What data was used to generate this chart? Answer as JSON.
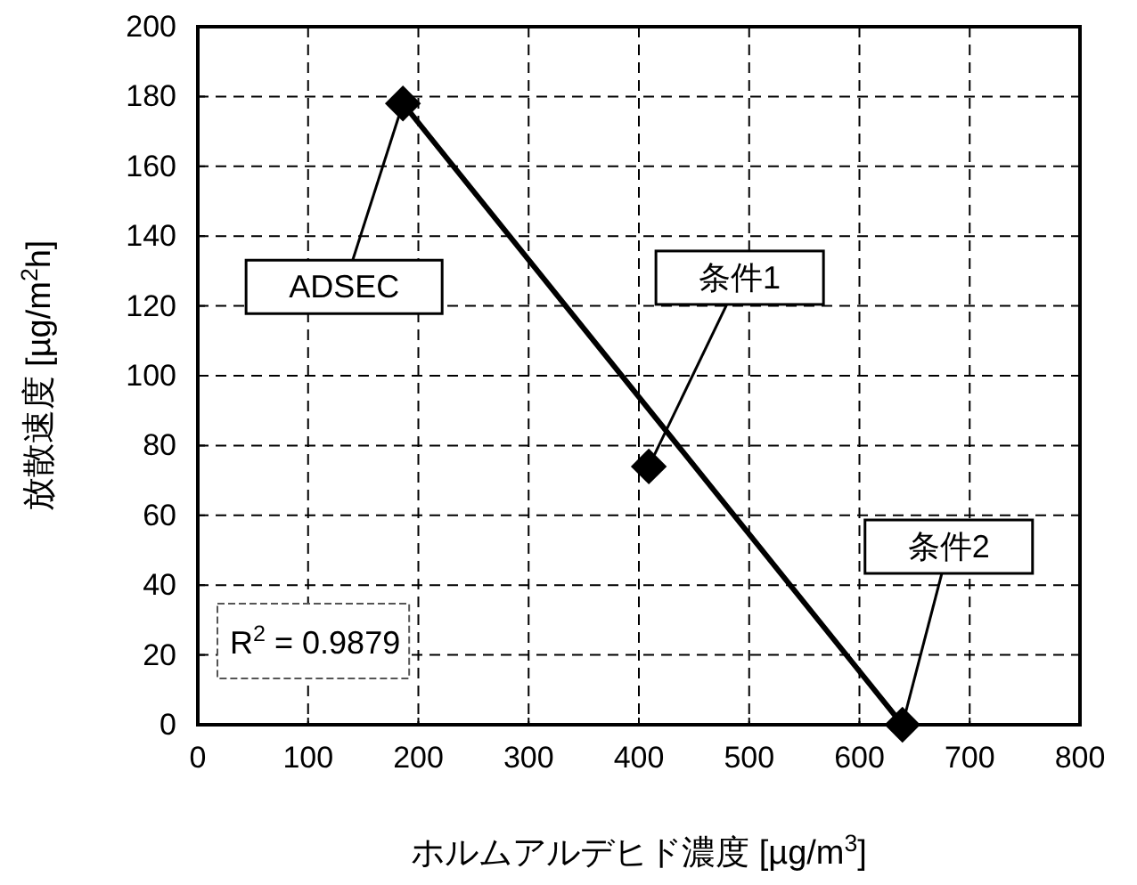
{
  "chart_data": {
    "type": "scatter",
    "xlabel": "ホルムアルデヒド濃度 [µg/m$^{3}$]",
    "ylabel": "放散速度 [µg/m$^{2}$h]",
    "xlim": [
      0,
      800
    ],
    "xticks": [
      0,
      100,
      200,
      300,
      400,
      500,
      600,
      700,
      800
    ],
    "ylim": [
      0,
      200
    ],
    "yticks": [
      0,
      20,
      40,
      60,
      80,
      100,
      120,
      140,
      160,
      180,
      200
    ],
    "grid": true,
    "marker": "diamond",
    "series": [
      {
        "color": "#000000",
        "x": [
          186,
          409,
          639
        ],
        "values": [
          178,
          74,
          0
        ]
      },
      {
        "type": "line",
        "color": "#000000",
        "x": [
          186,
          639
        ],
        "values": [
          178,
          0
        ],
        "line_style": "solid",
        "marker": "none"
      }
    ],
    "annotations": [
      {
        "text": "ADSEC",
        "x": 186,
        "y": 178
      },
      {
        "text": "条件1",
        "x": 409,
        "y": 74
      },
      {
        "text": "条件2",
        "x": 639,
        "y": 0
      },
      "R$^{2}$ = 0.9879"
    ]
  }
}
